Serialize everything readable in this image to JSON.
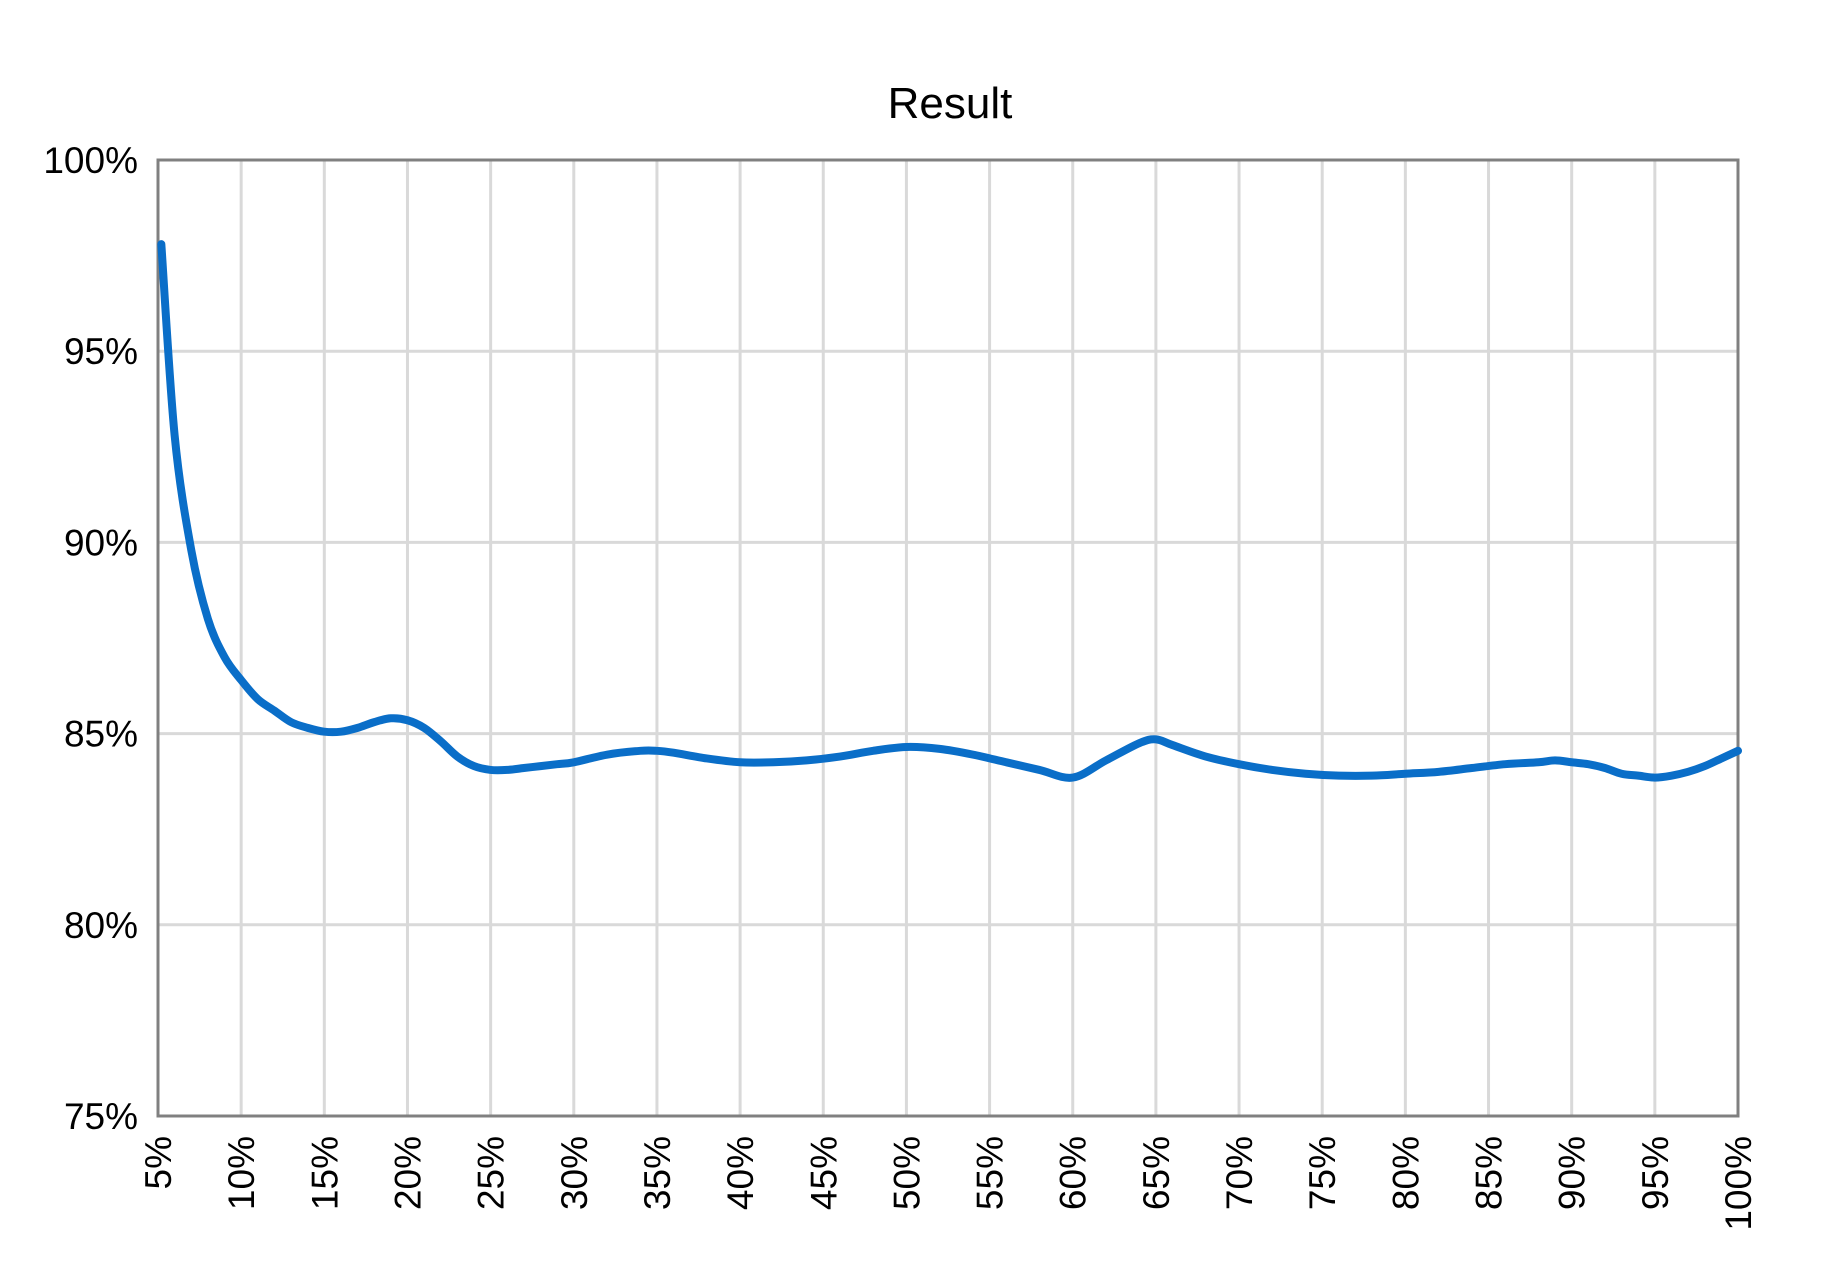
{
  "chart_data": {
    "type": "line",
    "title": "Result",
    "xlabel": "",
    "ylabel": "",
    "x_ticks": [
      "5%",
      "10%",
      "15%",
      "20%",
      "25%",
      "30%",
      "35%",
      "40%",
      "45%",
      "50%",
      "55%",
      "60%",
      "65%",
      "70%",
      "75%",
      "80%",
      "85%",
      "90%",
      "95%",
      "100%"
    ],
    "y_ticks": [
      "75%",
      "80%",
      "85%",
      "90%",
      "95%",
      "100%"
    ],
    "xlim": [
      5,
      100
    ],
    "ylim": [
      75,
      100
    ],
    "grid": true,
    "legend": "none",
    "series_color": "#0a6ec8",
    "grid_color": "#d9d9d9",
    "frame_color": "#808080",
    "series": [
      {
        "x": [
          5.2,
          6,
          7,
          8,
          9,
          10,
          11,
          12,
          13,
          14,
          15,
          16,
          17,
          18,
          19,
          20,
          21,
          22,
          23,
          24,
          25,
          26,
          27,
          28,
          29,
          30,
          32,
          34,
          35,
          36,
          38,
          40,
          42,
          44,
          46,
          48,
          50,
          52,
          54,
          56,
          58,
          60,
          62,
          64,
          65,
          66,
          68,
          70,
          72,
          74,
          76,
          78,
          80,
          82,
          84,
          86,
          88,
          89,
          90,
          91,
          92,
          93,
          94,
          95,
          96,
          97,
          98,
          99,
          100
        ],
        "y": [
          97.8,
          92.8,
          89.8,
          88.0,
          87.0,
          86.4,
          85.9,
          85.6,
          85.3,
          85.15,
          85.05,
          85.05,
          85.15,
          85.3,
          85.4,
          85.35,
          85.15,
          84.8,
          84.4,
          84.15,
          84.05,
          84.05,
          84.1,
          84.15,
          84.2,
          84.25,
          84.45,
          84.55,
          84.55,
          84.5,
          84.35,
          84.25,
          84.25,
          84.3,
          84.4,
          84.55,
          84.65,
          84.6,
          84.45,
          84.25,
          84.05,
          83.85,
          84.3,
          84.75,
          84.85,
          84.7,
          84.4,
          84.2,
          84.05,
          83.95,
          83.9,
          83.9,
          83.95,
          84.0,
          84.1,
          84.2,
          84.25,
          84.3,
          84.25,
          84.2,
          84.1,
          83.95,
          83.9,
          83.85,
          83.9,
          84.0,
          84.15,
          84.35,
          84.55
        ]
      }
    ]
  }
}
